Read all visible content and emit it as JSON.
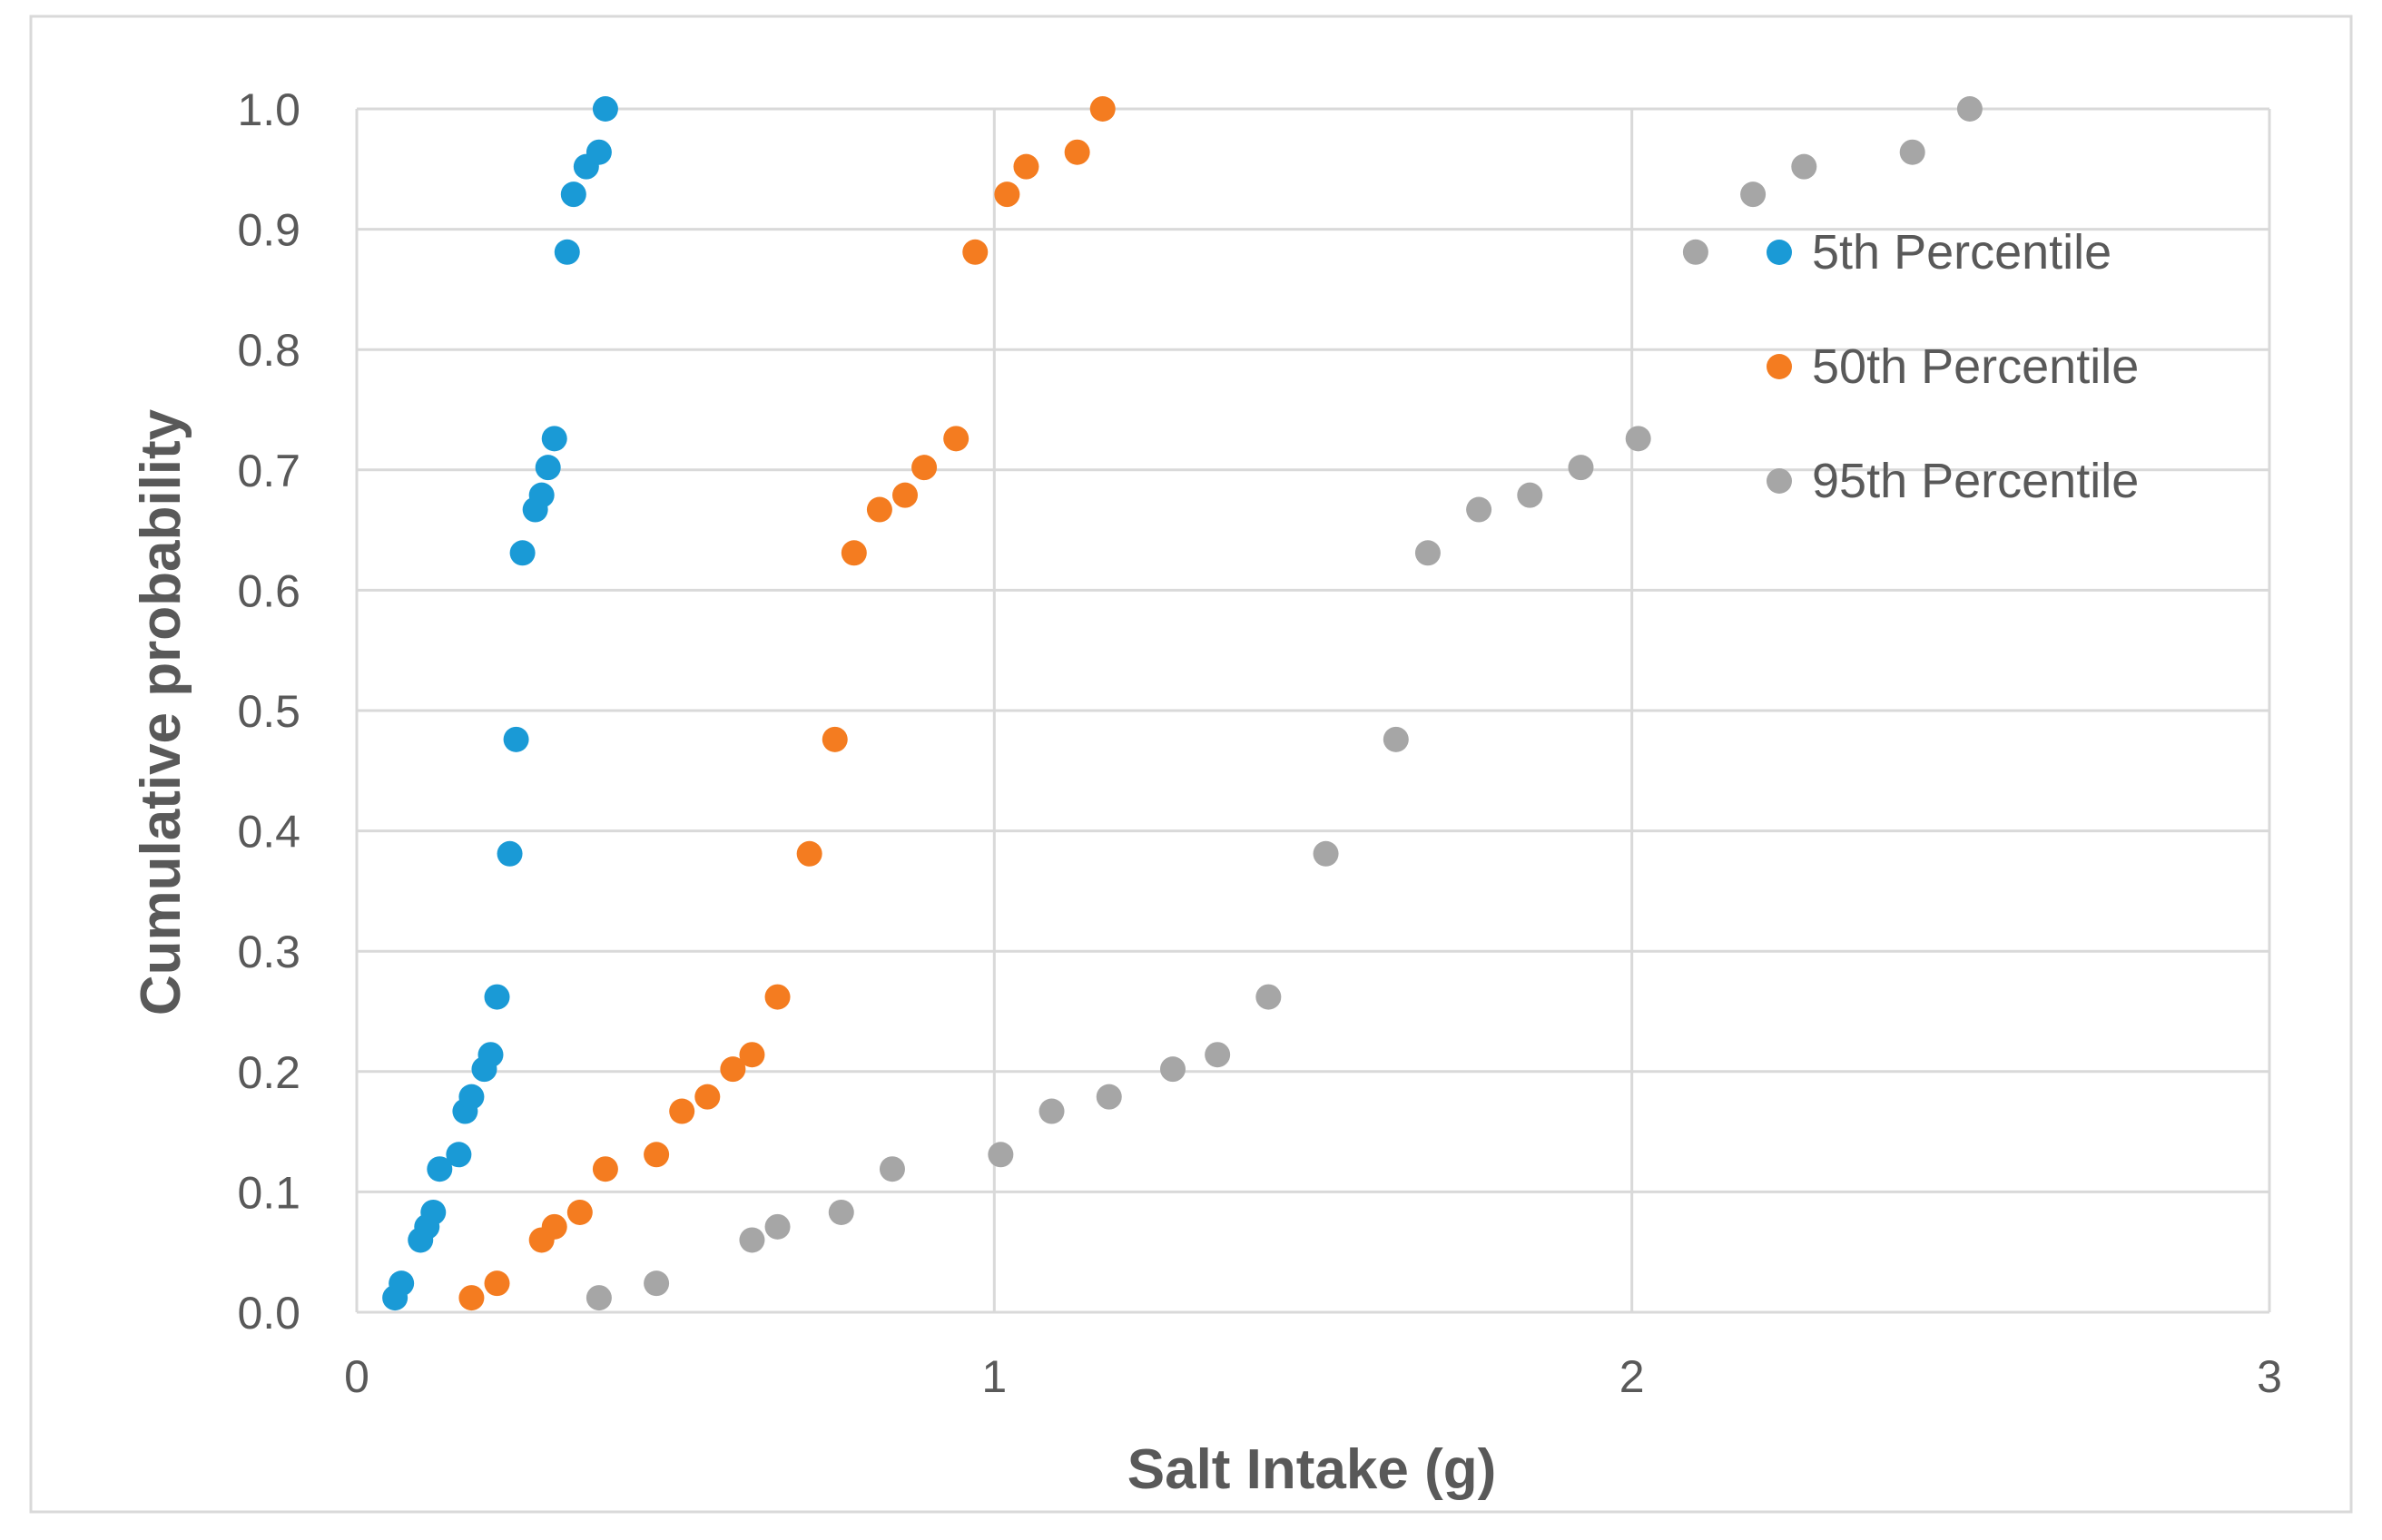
{
  "chart_data": {
    "type": "scatter",
    "title": "",
    "xlabel": "Salt Intake (g)",
    "ylabel": "Cumulative probability",
    "xlim": [
      0,
      3
    ],
    "ylim": [
      0,
      1
    ],
    "x_ticks": [
      0,
      1,
      2,
      3
    ],
    "x_tick_labels": [
      "0",
      "1",
      "2",
      "3"
    ],
    "y_ticks": [
      0.0,
      0.1,
      0.2,
      0.3,
      0.4,
      0.5,
      0.6,
      0.7,
      0.8,
      0.9,
      1.0
    ],
    "y_tick_labels": [
      "0.0",
      "0.1",
      "0.2",
      "0.3",
      "0.4",
      "0.5",
      "0.6",
      "0.7",
      "0.8",
      "0.9",
      "1.0"
    ],
    "grid": true,
    "legend_position": "top-right",
    "cumulative_probability": [
      0.012,
      0.024,
      0.06,
      0.071,
      0.083,
      0.119,
      0.131,
      0.167,
      0.179,
      0.202,
      0.214,
      0.262,
      0.381,
      0.476,
      0.631,
      0.667,
      0.679,
      0.702,
      0.726,
      0.881,
      0.929,
      0.952,
      0.964,
      1.0
    ],
    "series": [
      {
        "name": "5th Percentile",
        "color": "#1a9ad6",
        "x": [
          0.06,
          0.07,
          0.1,
          0.11,
          0.12,
          0.13,
          0.16,
          0.17,
          0.18,
          0.2,
          0.21,
          0.22,
          0.24,
          0.25,
          0.26,
          0.28,
          0.29,
          0.3,
          0.31,
          0.33,
          0.34,
          0.36,
          0.38,
          0.39
        ]
      },
      {
        "name": "50th Percentile",
        "color": "#f47c20",
        "x": [
          0.18,
          0.22,
          0.29,
          0.31,
          0.35,
          0.39,
          0.47,
          0.51,
          0.55,
          0.59,
          0.62,
          0.66,
          0.71,
          0.75,
          0.78,
          0.82,
          0.86,
          0.89,
          0.94,
          0.97,
          1.02,
          1.05,
          1.13,
          1.17
        ]
      },
      {
        "name": "95th Percentile",
        "color": "#a6a6a6",
        "x": [
          0.38,
          0.47,
          0.62,
          0.66,
          0.76,
          0.84,
          1.01,
          1.09,
          1.18,
          1.28,
          1.35,
          1.43,
          1.52,
          1.63,
          1.68,
          1.76,
          1.84,
          1.92,
          2.01,
          2.1,
          2.19,
          2.27,
          2.44,
          2.53
        ]
      }
    ]
  }
}
